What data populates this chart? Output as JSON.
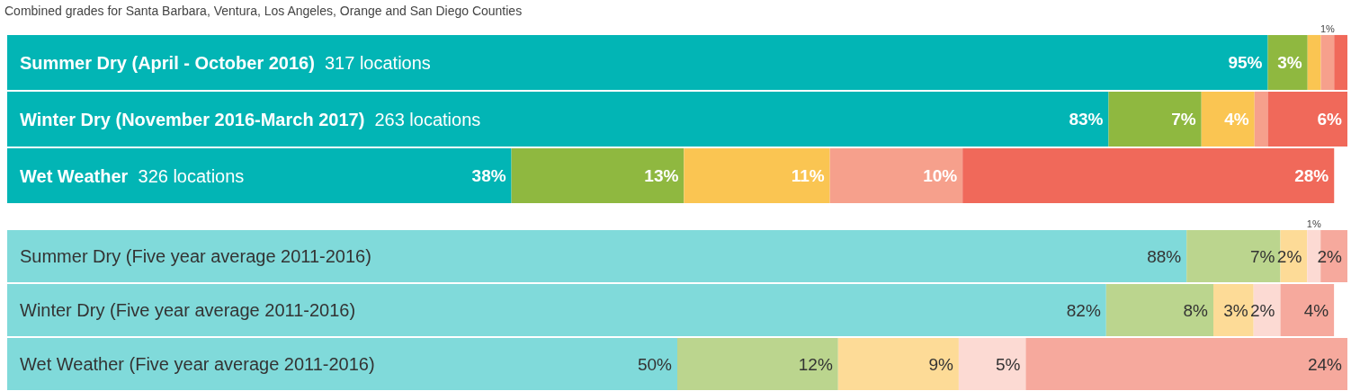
{
  "chart_data": [
    {
      "type": "bar",
      "orientation": "horizontal",
      "stacked": true,
      "title": "Combined grades for Santa Barbara, Ventura, Los Angeles, Orange and San Diego Counties",
      "categories": [
        "Summer Dry (April - October 2016)  317 locations",
        "Winter Dry (November 2016-March 2017)  263 locations",
        "Wet Weather  326 locations"
      ],
      "series": [
        {
          "color": "#02b5b5",
          "values": [
            95,
            83,
            38
          ],
          "value_labels": [
            "95%",
            "83%",
            "38%"
          ]
        },
        {
          "color": "#8fb840",
          "values": [
            3,
            7,
            13
          ],
          "value_labels": [
            "3%",
            "7%",
            "13%"
          ]
        },
        {
          "color": "#fac552",
          "values": [
            1,
            4,
            11
          ],
          "value_labels": [
            null,
            "4%",
            "11%"
          ]
        },
        {
          "color": "#f6a08c",
          "values": [
            1,
            1,
            10
          ],
          "value_labels": [
            "1%",
            null,
            "10%"
          ]
        },
        {
          "color": "#f0695a",
          "values": [
            1,
            6,
            28
          ],
          "value_labels": [
            null,
            "6%",
            "28%"
          ]
        }
      ]
    },
    {
      "type": "bar",
      "orientation": "horizontal",
      "stacked": true,
      "categories": [
        "Summer Dry (Five year average 2011-2016)",
        "Winter Dry (Five year average 2011-2016)",
        "Wet Weather (Five year average 2011-2016)"
      ],
      "series": [
        {
          "color": "#80dada",
          "values": [
            88,
            82,
            50
          ],
          "value_labels": [
            "88%",
            "82%",
            "50%"
          ]
        },
        {
          "color": "#bbd58e",
          "values": [
            7,
            8,
            12
          ],
          "value_labels": [
            "7%",
            "8%",
            "12%"
          ]
        },
        {
          "color": "#fddb97",
          "values": [
            2,
            3,
            9
          ],
          "value_labels": [
            "2%",
            "3%",
            "9%"
          ]
        },
        {
          "color": "#fcdad3",
          "values": [
            1,
            2,
            5
          ],
          "value_labels": [
            "1%",
            "2%",
            "5%"
          ]
        },
        {
          "color": "#f6a99d",
          "values": [
            2,
            4,
            24
          ],
          "value_labels": [
            "2%",
            "4%",
            "24%"
          ]
        }
      ]
    }
  ]
}
